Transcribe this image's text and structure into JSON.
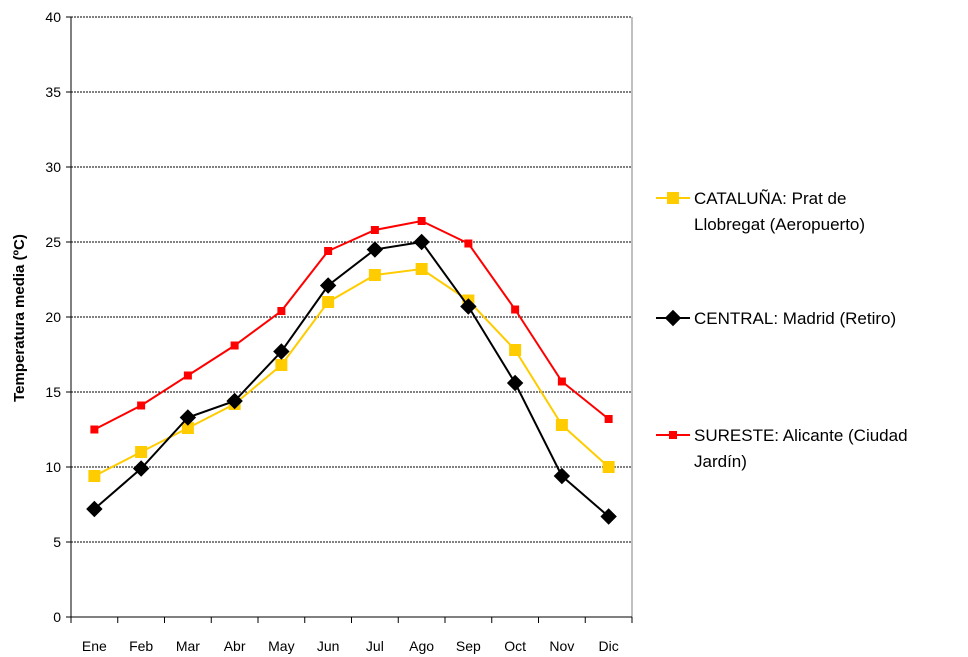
{
  "chart_data": {
    "type": "line",
    "title": "",
    "xlabel": "",
    "ylabel": "Temperatura media (ºC)",
    "ylim": [
      0,
      40
    ],
    "yticks": [
      0,
      5,
      10,
      15,
      20,
      25,
      30,
      35,
      40
    ],
    "grid": true,
    "legend_position": "right",
    "categories": [
      "Ene",
      "Feb",
      "Mar",
      "Abr",
      "May",
      "Jun",
      "Jul",
      "Ago",
      "Sep",
      "Oct",
      "Nov",
      "Dic"
    ],
    "series": [
      {
        "name": "CATALUÑA:  Prat de Llobregat (Aeropuerto)",
        "legend_lines": [
          "CATALUÑA:  Prat de",
          "Llobregat (Aeropuerto)"
        ],
        "color": "#ffcc00",
        "marker": "square",
        "values": [
          9.4,
          11.0,
          12.6,
          14.2,
          16.8,
          21.0,
          22.8,
          23.2,
          21.1,
          17.8,
          12.8,
          10.0
        ]
      },
      {
        "name": "CENTRAL: Madrid (Retiro)",
        "legend_lines": [
          "CENTRAL: Madrid (Retiro)"
        ],
        "color": "#000000",
        "marker": "diamond",
        "values": [
          7.2,
          9.9,
          13.3,
          14.4,
          17.7,
          22.1,
          24.5,
          25.0,
          20.7,
          15.6,
          9.4,
          6.7
        ]
      },
      {
        "name": "SURESTE: Alicante (Ciudad Jardín)",
        "legend_lines": [
          "SURESTE: Alicante (Ciudad",
          "Jardín)"
        ],
        "color": "#ff0000",
        "marker": "square-small",
        "values": [
          12.5,
          14.1,
          16.1,
          18.1,
          20.4,
          24.4,
          25.8,
          26.4,
          24.9,
          20.5,
          15.7,
          13.2
        ]
      }
    ]
  }
}
